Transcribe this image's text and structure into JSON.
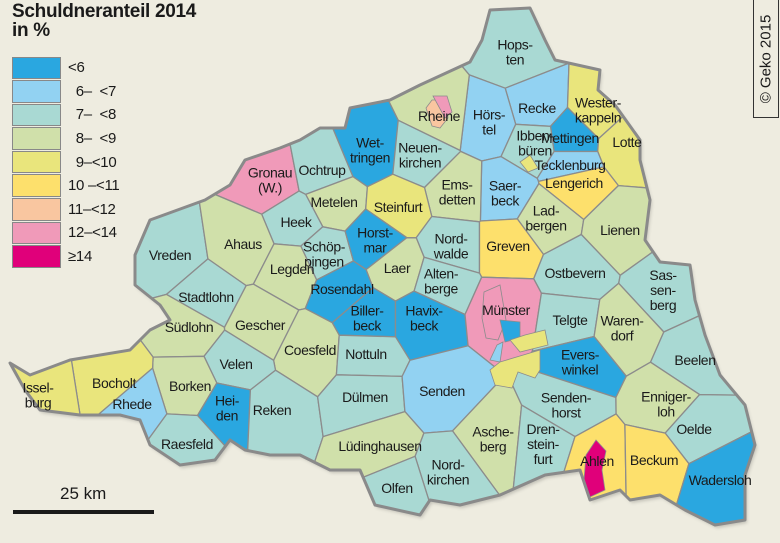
{
  "title": {
    "line1": "Schuldneranteil 2014",
    "line2": "in %"
  },
  "copyright": "© Geko 2015",
  "scale": {
    "label": "25 km"
  },
  "legend": [
    {
      "label": "<6",
      "color": "#2aa7e0"
    },
    {
      "label": "  6–  <7",
      "color": "#92d2f2"
    },
    {
      "label": "  7–  <8",
      "color": "#a9d9d3"
    },
    {
      "label": "  8–  <9",
      "color": "#d0e0aa"
    },
    {
      "label": "  9–<10",
      "color": "#e9e57c"
    },
    {
      "label": "10 –<11",
      "color": "#fde06c"
    },
    {
      "label": "11–<12",
      "color": "#f9c6a0"
    },
    {
      "label": "12–<14",
      "color": "#f09ab9"
    },
    {
      "label": "≥14",
      "color": "#e0007a"
    }
  ],
  "municipalities": [
    {
      "name": "Hopsten",
      "lines": [
        "Hops-",
        "ten"
      ],
      "class": 2
    },
    {
      "name": "Recke",
      "lines": [
        "Recke"
      ],
      "class": 1
    },
    {
      "name": "Westerkappeln",
      "lines": [
        "Wester-",
        "kappeln"
      ],
      "class": 4
    },
    {
      "name": "Mettingen",
      "lines": [
        "Mettingen"
      ],
      "class": 0
    },
    {
      "name": "Hörstel",
      "lines": [
        "Hörs-",
        "tel"
      ],
      "class": 1
    },
    {
      "name": "Ibbenbüren",
      "lines": [
        "Ibben-",
        "büren"
      ],
      "class": 2
    },
    {
      "name": "Lotte",
      "lines": [
        "Lotte"
      ],
      "class": 4
    },
    {
      "name": "Rheine",
      "lines": [
        "Rheine"
      ],
      "class": 3
    },
    {
      "name": "Wettringen",
      "lines": [
        "Wet-",
        "tringen"
      ],
      "class": 0
    },
    {
      "name": "Neuenkirchen",
      "lines": [
        "Neuen-",
        "kirchen"
      ],
      "class": 2
    },
    {
      "name": "Tecklenburg",
      "lines": [
        "Tecklenburg"
      ],
      "class": 1
    },
    {
      "name": "Gronau (W.)",
      "lines": [
        "Gronau",
        "(W.)"
      ],
      "class": 7
    },
    {
      "name": "Ochtrup",
      "lines": [
        "Ochtrup"
      ],
      "class": 2
    },
    {
      "name": "Saerbeck",
      "lines": [
        "Saer-",
        "beck"
      ],
      "class": 1
    },
    {
      "name": "Lengerich",
      "lines": [
        "Lengerich"
      ],
      "class": 5
    },
    {
      "name": "Emsdetten",
      "lines": [
        "Ems-",
        "detten"
      ],
      "class": 3
    },
    {
      "name": "Metelen",
      "lines": [
        "Metelen"
      ],
      "class": 3
    },
    {
      "name": "Steinfurt",
      "lines": [
        "Steinfurt"
      ],
      "class": 4
    },
    {
      "name": "Heek",
      "lines": [
        "Heek"
      ],
      "class": 2
    },
    {
      "name": "Ladbergen",
      "lines": [
        "Lad-",
        "bergen"
      ],
      "class": 3
    },
    {
      "name": "Lienen",
      "lines": [
        "Lienen"
      ],
      "class": 3
    },
    {
      "name": "Vreden",
      "lines": [
        "Vreden"
      ],
      "class": 2
    },
    {
      "name": "Ahaus",
      "lines": [
        "Ahaus"
      ],
      "class": 3
    },
    {
      "name": "Schöppingen",
      "lines": [
        "Schöp-",
        "pingen"
      ],
      "class": 2
    },
    {
      "name": "Horstmar",
      "lines": [
        "Horst-",
        "mar"
      ],
      "class": 0
    },
    {
      "name": "Nordwalde",
      "lines": [
        "Nord-",
        "walde"
      ],
      "class": 2
    },
    {
      "name": "Greven",
      "lines": [
        "Greven"
      ],
      "class": 5
    },
    {
      "name": "Legden",
      "lines": [
        "Legden"
      ],
      "class": 3
    },
    {
      "name": "Laer",
      "lines": [
        "Laer"
      ],
      "class": 3
    },
    {
      "name": "Altenberge",
      "lines": [
        "Alten-",
        "berge"
      ],
      "class": 2
    },
    {
      "name": "Ostbevern",
      "lines": [
        "Ostbevern"
      ],
      "class": 2
    },
    {
      "name": "Sassenberg",
      "lines": [
        "Sas-",
        "sen-",
        "berg"
      ],
      "class": 2
    },
    {
      "name": "Stadtlohn",
      "lines": [
        "Stadtlohn"
      ],
      "class": 2
    },
    {
      "name": "Rosendahl",
      "lines": [
        "Rosendahl"
      ],
      "class": 0
    },
    {
      "name": "Billerbeck",
      "lines": [
        "Biller-",
        "beck"
      ],
      "class": 0
    },
    {
      "name": "Havixbeck",
      "lines": [
        "Havix-",
        "beck"
      ],
      "class": 0
    },
    {
      "name": "Münster",
      "lines": [
        "Münster"
      ],
      "class": 7
    },
    {
      "name": "Telgte",
      "lines": [
        "Telgte"
      ],
      "class": 2
    },
    {
      "name": "Südlohn",
      "lines": [
        "Südlohn"
      ],
      "class": 3
    },
    {
      "name": "Gescher",
      "lines": [
        "Gescher"
      ],
      "class": 3
    },
    {
      "name": "Warendorf",
      "lines": [
        "Waren-",
        "dorf"
      ],
      "class": 3
    },
    {
      "name": "Coesfeld",
      "lines": [
        "Coesfeld"
      ],
      "class": 3
    },
    {
      "name": "Nottuln",
      "lines": [
        "Nottuln"
      ],
      "class": 2
    },
    {
      "name": "Everswinkel",
      "lines": [
        "Evers-",
        "winkel"
      ],
      "class": 0
    },
    {
      "name": "Beelen",
      "lines": [
        "Beelen"
      ],
      "class": 2
    },
    {
      "name": "Velen",
      "lines": [
        "Velen"
      ],
      "class": 2
    },
    {
      "name": "Borken",
      "lines": [
        "Borken"
      ],
      "class": 3
    },
    {
      "name": "Bocholt",
      "lines": [
        "Bocholt"
      ],
      "class": 4
    },
    {
      "name": "Isselburg",
      "lines": [
        "Issel-",
        "burg"
      ],
      "class": 4
    },
    {
      "name": "Rhede",
      "lines": [
        "Rhede"
      ],
      "class": 1
    },
    {
      "name": "Heiden",
      "lines": [
        "Hei-",
        "den"
      ],
      "class": 0
    },
    {
      "name": "Reken",
      "lines": [
        "Reken"
      ],
      "class": 2
    },
    {
      "name": "Dülmen",
      "lines": [
        "Dülmen"
      ],
      "class": 2
    },
    {
      "name": "Senden",
      "lines": [
        "Senden"
      ],
      "class": 1
    },
    {
      "name": "Sendenhorst",
      "lines": [
        "Senden-",
        "horst"
      ],
      "class": 2
    },
    {
      "name": "Ennigerloh",
      "lines": [
        "Enniger-",
        "loh"
      ],
      "class": 3
    },
    {
      "name": "Raesfeld",
      "lines": [
        "Raesfeld"
      ],
      "class": 2
    },
    {
      "name": "Lüdinghausen",
      "lines": [
        "Lüdinghausen"
      ],
      "class": 3
    },
    {
      "name": "Ascheberg",
      "lines": [
        "Asche-",
        "berg"
      ],
      "class": 3
    },
    {
      "name": "Drensteinfurt",
      "lines": [
        "Dren-",
        "stein-",
        "furt"
      ],
      "class": 2
    },
    {
      "name": "Oelde",
      "lines": [
        "Oelde"
      ],
      "class": 2
    },
    {
      "name": "Nordkirchen",
      "lines": [
        "Nord-",
        "kirchen"
      ],
      "class": 2
    },
    {
      "name": "Olfen",
      "lines": [
        "Olfen"
      ],
      "class": 2
    },
    {
      "name": "Ahlen",
      "lines": [
        "Ahlen"
      ],
      "class": 5
    },
    {
      "name": "Beckum",
      "lines": [
        "Beckum"
      ],
      "class": 5
    },
    {
      "name": "Wadersloh",
      "lines": [
        "Wadersloh"
      ],
      "class": 0
    }
  ]
}
